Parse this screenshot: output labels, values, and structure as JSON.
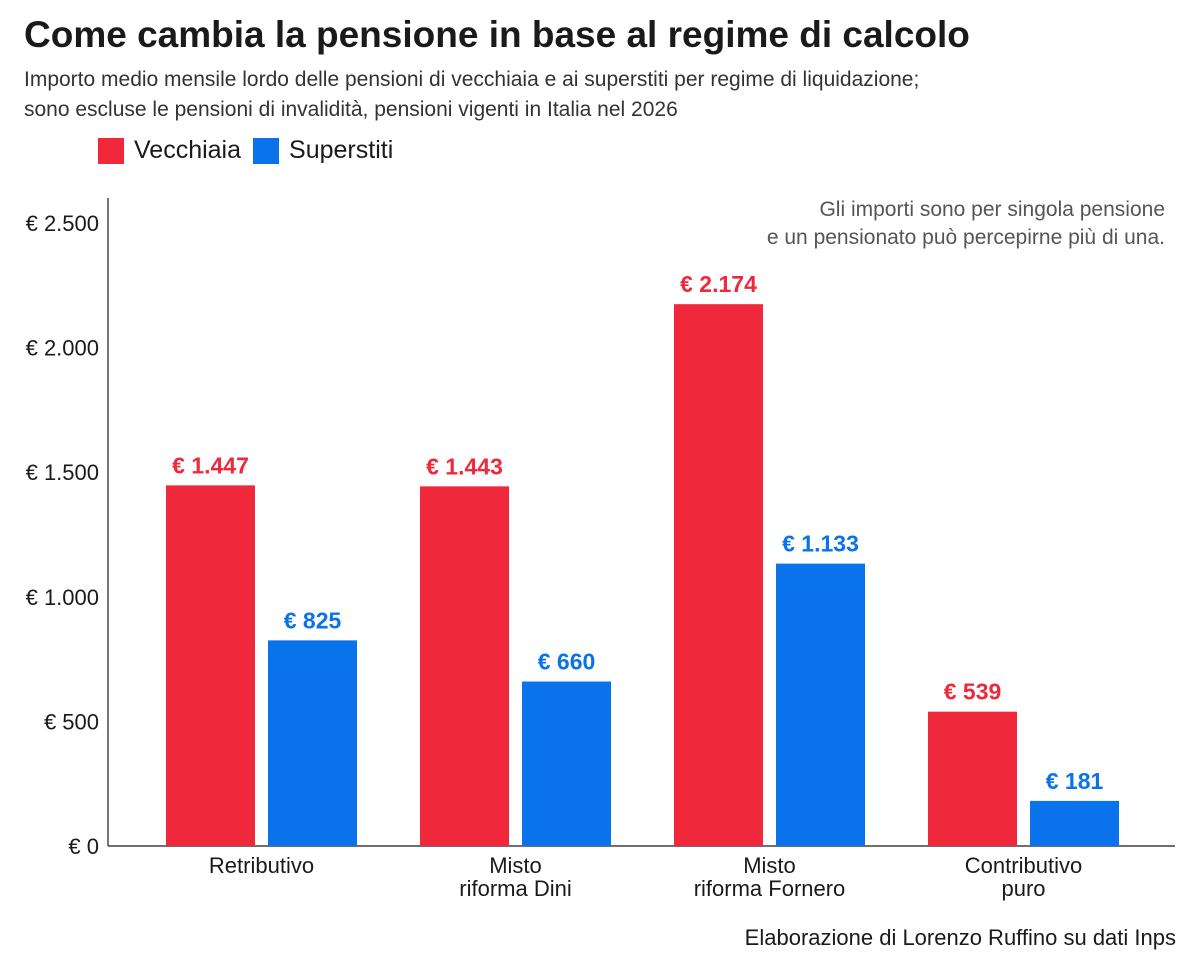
{
  "header": {
    "title": "Come cambia la pensione in base al regime di calcolo",
    "subtitle_line1": "Importo medio mensile lordo delle pensioni di vecchiaia e ai superstiti per regime di liquidazione;",
    "subtitle_line2": "sono escluse le pensioni di invalidità, pensioni vigenti in Italia nel 2026"
  },
  "legend": {
    "items": [
      {
        "label": "Vecchiaia",
        "color": "#f0283c"
      },
      {
        "label": "Superstiti",
        "color": "#0a73eb"
      }
    ]
  },
  "annotation": {
    "line1": "Gli importi sono per singola pensione",
    "line2": "e un pensionato può percepirne più di una."
  },
  "footer": {
    "source": "Elaborazione di Lorenzo Ruffino su dati Inps"
  },
  "chart_data": {
    "type": "bar",
    "title": "Come cambia la pensione in base al regime di calcolo",
    "categories": [
      [
        "Retributivo"
      ],
      [
        "Misto",
        "riforma Dini"
      ],
      [
        "Misto",
        "riforma Fornero"
      ],
      [
        "Contributivo",
        "puro"
      ]
    ],
    "series": [
      {
        "name": "Vecchiaia",
        "color": "#f0283c",
        "values": [
          1447,
          1443,
          2174,
          539
        ],
        "labels": [
          "€ 1.447",
          "€ 1.443",
          "€ 2.174",
          "€ 539"
        ]
      },
      {
        "name": "Superstiti",
        "color": "#0a73eb",
        "values": [
          825,
          660,
          1133,
          181
        ],
        "labels": [
          "€ 825",
          "€ 660",
          "€ 1.133",
          "€ 181"
        ]
      }
    ],
    "ylim": [
      0,
      2600
    ],
    "yticks": [
      0,
      500,
      1000,
      1500,
      2000,
      2500
    ],
    "ytick_labels": [
      "€ 0",
      "€ 500",
      "€ 1.000",
      "€ 1.500",
      "€ 2.000",
      "€ 2.500"
    ],
    "grid": false,
    "legend_position": "top-left"
  }
}
